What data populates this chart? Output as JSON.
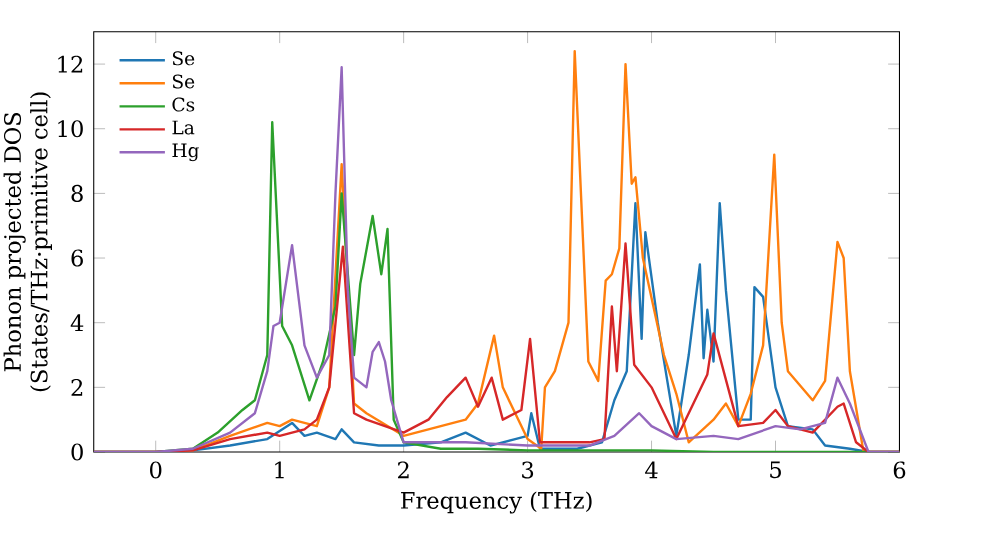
{
  "chart_data": {
    "type": "line",
    "xlabel": "Frequency (THz)",
    "ylabel": "Phonon projected DOS\n(States/THz·primitive cell)",
    "xlim": [
      -0.5,
      6
    ],
    "ylim": [
      0,
      13
    ],
    "xticks": [
      0,
      1,
      2,
      3,
      4,
      5,
      6
    ],
    "yticks": [
      0,
      2,
      4,
      6,
      8,
      10,
      12
    ],
    "legend": "top left",
    "grid": false,
    "marker": "none",
    "line_style": "solid",
    "series": [
      {
        "name": "Se",
        "color": "#1f77b4",
        "x": [
          -0.5,
          0,
          0.3,
          0.6,
          0.9,
          1.1,
          1.2,
          1.3,
          1.45,
          1.5,
          1.6,
          1.8,
          2.0,
          2.3,
          2.5,
          2.7,
          2.9,
          3.0,
          3.03,
          3.1,
          3.4,
          3.6,
          3.7,
          3.8,
          3.87,
          3.92,
          3.95,
          4.05,
          4.2,
          4.3,
          4.39,
          4.42,
          4.45,
          4.5,
          4.55,
          4.6,
          4.7,
          4.8,
          4.83,
          4.9,
          5.0,
          5.1,
          5.3,
          5.4,
          5.6,
          5.75,
          6.0
        ],
        "values": [
          0,
          0,
          0.05,
          0.2,
          0.4,
          0.9,
          0.5,
          0.6,
          0.4,
          0.7,
          0.3,
          0.2,
          0.2,
          0.3,
          0.6,
          0.2,
          0.4,
          0.5,
          1.2,
          0.1,
          0.1,
          0.3,
          1.6,
          2.5,
          7.7,
          3.5,
          6.8,
          4.0,
          0.5,
          3.0,
          5.8,
          2.9,
          4.4,
          2.8,
          7.7,
          5.0,
          1.0,
          1.0,
          5.1,
          4.8,
          2.0,
          0.8,
          0.7,
          0.2,
          0.1,
          0,
          0
        ]
      },
      {
        "name": "Se",
        "color": "#ff7f0e",
        "x": [
          -0.5,
          0,
          0.3,
          0.6,
          0.9,
          1.0,
          1.1,
          1.2,
          1.3,
          1.4,
          1.5,
          1.6,
          1.7,
          2.0,
          2.3,
          2.5,
          2.6,
          2.73,
          2.8,
          3.0,
          3.11,
          3.14,
          3.22,
          3.33,
          3.38,
          3.49,
          3.57,
          3.63,
          3.68,
          3.74,
          3.79,
          3.84,
          3.87,
          3.93,
          4.1,
          4.2,
          4.3,
          4.5,
          4.6,
          4.7,
          4.8,
          4.9,
          4.99,
          5.05,
          5.1,
          5.3,
          5.4,
          5.5,
          5.55,
          5.6,
          5.71,
          6.0
        ],
        "values": [
          0,
          0,
          0.05,
          0.5,
          0.9,
          0.8,
          1.0,
          0.9,
          0.8,
          2.0,
          8.9,
          1.5,
          1.2,
          0.5,
          0.8,
          1.0,
          1.5,
          3.6,
          2.0,
          0.4,
          0.1,
          2.0,
          2.5,
          4.0,
          12.4,
          2.8,
          2.2,
          5.3,
          5.5,
          6.3,
          12.0,
          8.3,
          8.5,
          6.0,
          3.0,
          1.8,
          0.3,
          1.0,
          1.5,
          0.8,
          1.8,
          3.3,
          9.2,
          4.0,
          2.5,
          1.6,
          2.2,
          6.5,
          6.0,
          2.5,
          0,
          0
        ]
      },
      {
        "name": "Cs",
        "color": "#2ca02c",
        "x": [
          -0.5,
          0,
          0.3,
          0.5,
          0.7,
          0.8,
          0.9,
          0.94,
          1.02,
          1.1,
          1.24,
          1.35,
          1.45,
          1.5,
          1.55,
          1.6,
          1.65,
          1.75,
          1.82,
          1.87,
          1.92,
          2.0,
          2.3,
          2.6,
          3.0,
          3.5,
          4.0,
          4.5,
          5.0,
          6.0
        ],
        "values": [
          0,
          0,
          0.1,
          0.6,
          1.3,
          1.6,
          3.0,
          10.2,
          3.9,
          3.3,
          1.6,
          2.8,
          4.5,
          8.0,
          5.5,
          3.0,
          5.2,
          7.3,
          5.5,
          6.9,
          1.0,
          0.3,
          0.1,
          0.1,
          0.05,
          0.05,
          0.05,
          0,
          0,
          0
        ]
      },
      {
        "name": "La",
        "color": "#d62728",
        "x": [
          -0.5,
          0,
          0.3,
          0.6,
          0.9,
          1.0,
          1.2,
          1.3,
          1.4,
          1.51,
          1.6,
          1.7,
          2.0,
          2.2,
          2.35,
          2.5,
          2.6,
          2.71,
          2.8,
          2.95,
          3.02,
          3.1,
          3.5,
          3.62,
          3.68,
          3.72,
          3.79,
          3.86,
          4.0,
          4.2,
          4.45,
          4.5,
          4.7,
          4.9,
          5.0,
          5.1,
          5.3,
          5.5,
          5.55,
          5.65,
          5.75,
          6.0
        ],
        "values": [
          0,
          0,
          0.05,
          0.4,
          0.6,
          0.5,
          0.7,
          1.0,
          2.0,
          6.35,
          1.2,
          1.0,
          0.6,
          1.0,
          1.7,
          2.3,
          1.4,
          2.3,
          1.0,
          1.3,
          3.5,
          0.3,
          0.3,
          0.4,
          4.5,
          2.5,
          6.45,
          2.7,
          2.0,
          0.4,
          2.4,
          3.67,
          0.8,
          0.9,
          1.3,
          0.8,
          0.6,
          1.4,
          1.5,
          0.3,
          0,
          0
        ]
      },
      {
        "name": "Hg",
        "color": "#9467bd",
        "x": [
          -0.5,
          0,
          0.3,
          0.6,
          0.8,
          0.9,
          0.95,
          1.0,
          1.1,
          1.2,
          1.3,
          1.4,
          1.45,
          1.5,
          1.55,
          1.6,
          1.7,
          1.75,
          1.8,
          1.85,
          1.9,
          2.0,
          2.5,
          3.0,
          3.5,
          3.7,
          3.9,
          4.0,
          4.2,
          4.5,
          4.7,
          5.0,
          5.2,
          5.4,
          5.5,
          5.6,
          5.75,
          6.0
        ],
        "values": [
          0,
          0,
          0.1,
          0.6,
          1.2,
          2.5,
          3.9,
          4.0,
          6.4,
          3.3,
          2.3,
          3.0,
          8.0,
          11.9,
          5.0,
          2.3,
          2.0,
          3.1,
          3.4,
          2.8,
          1.6,
          0.3,
          0.3,
          0.2,
          0.2,
          0.5,
          1.2,
          0.8,
          0.4,
          0.5,
          0.4,
          0.8,
          0.7,
          0.9,
          2.3,
          1.5,
          0,
          0
        ]
      }
    ]
  }
}
